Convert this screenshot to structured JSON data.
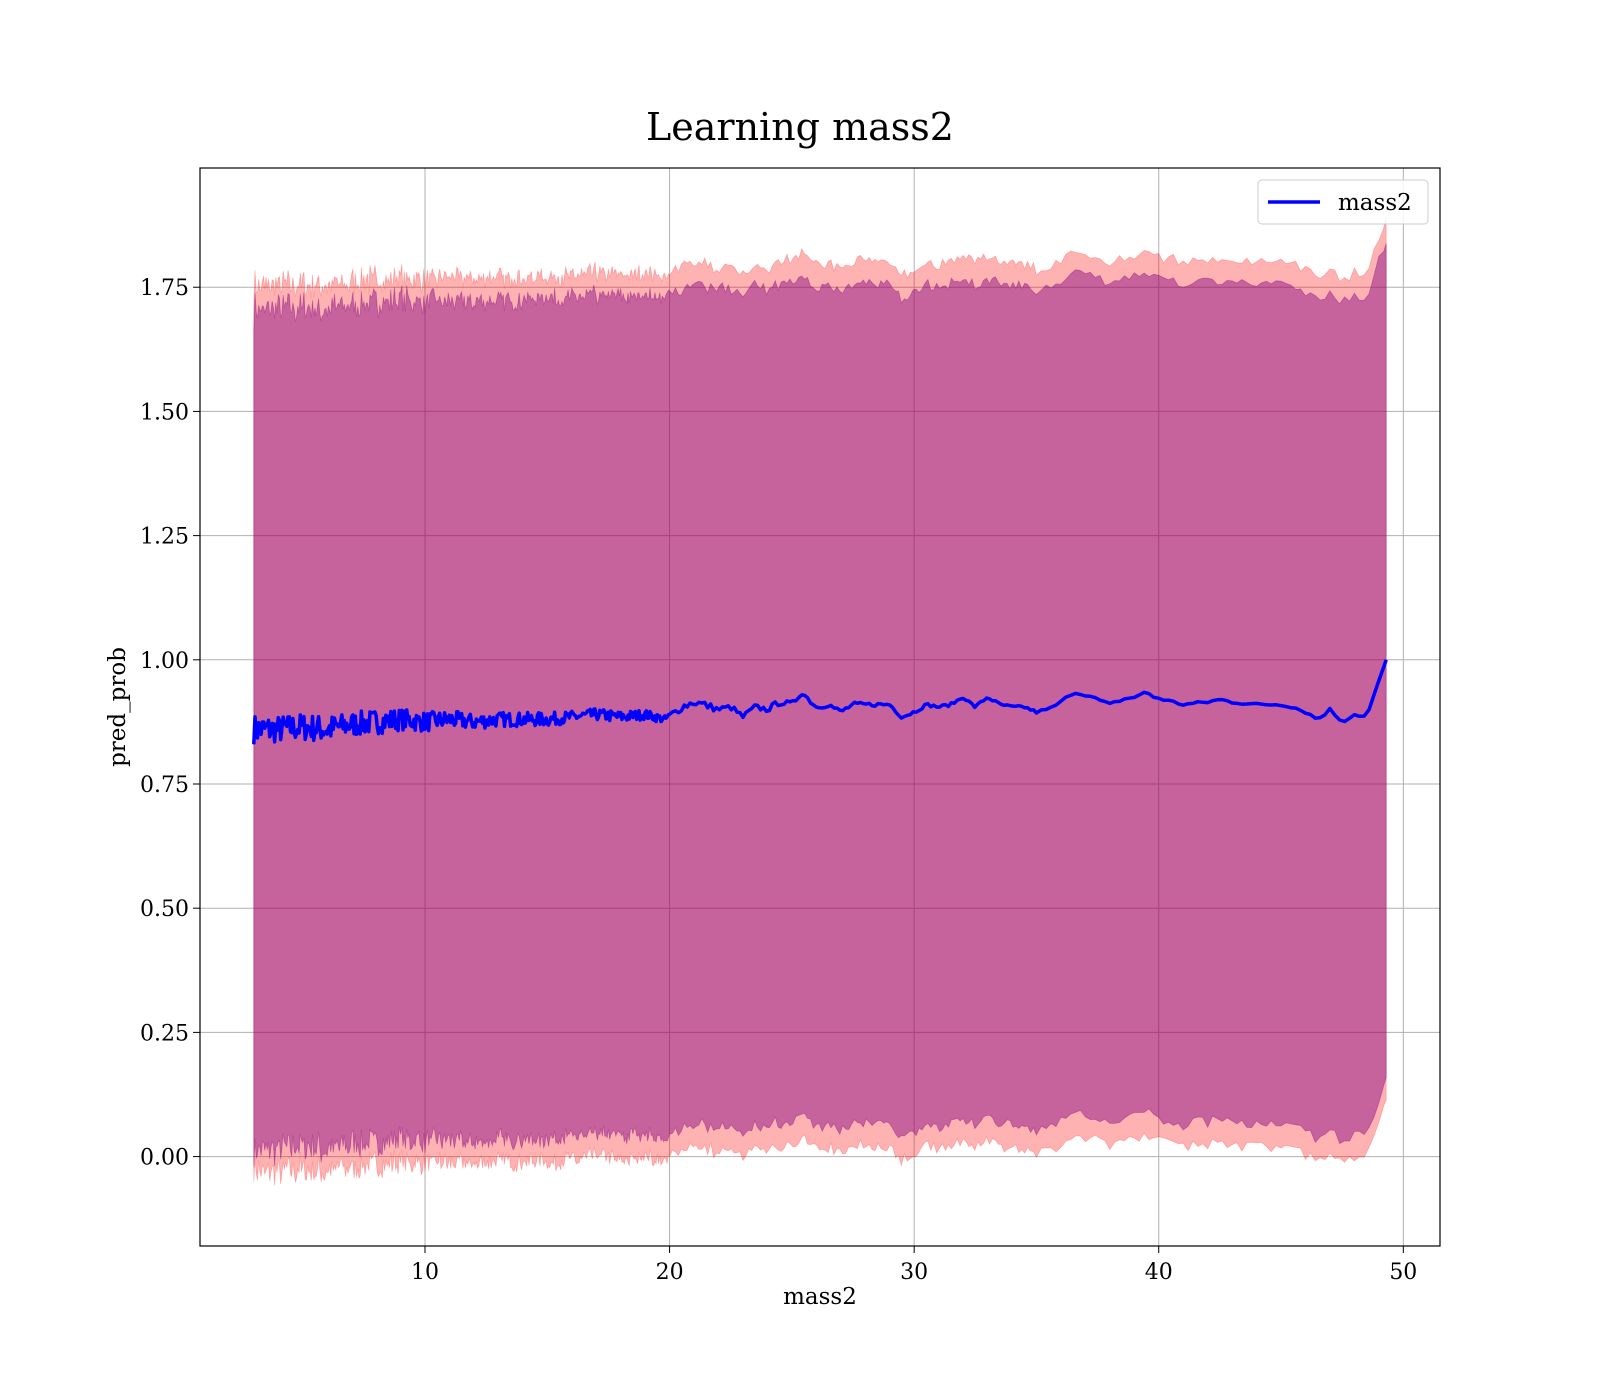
{
  "chart_data": {
    "type": "line",
    "title": "Learning mass2",
    "xlabel": "mass2",
    "ylabel": "pred_prob",
    "xlim": [
      0.8,
      51.5
    ],
    "ylim": [
      -0.18,
      1.99
    ],
    "xticks": [
      10,
      20,
      30,
      40,
      50
    ],
    "xtick_labels": [
      "10",
      "20",
      "30",
      "40",
      "50"
    ],
    "yticks": [
      0.0,
      0.25,
      0.5,
      0.75,
      1.0,
      1.25,
      1.5,
      1.75
    ],
    "ytick_labels": [
      "0.00",
      "0.25",
      "0.50",
      "0.75",
      "1.00",
      "1.25",
      "1.50",
      "1.75"
    ],
    "grid": true,
    "legend_position": "top-right",
    "colors": {
      "line": "#0000ff",
      "outer_band": "#ff0000",
      "inner_band": "#800080"
    },
    "series": [
      {
        "name": "mass2",
        "x": [
          3.0,
          4.0,
          5.0,
          6.0,
          7.0,
          8.0,
          9.0,
          10.0,
          11.0,
          12.0,
          13.0,
          14.0,
          15.0,
          16.0,
          17.0,
          18.0,
          19.0,
          19.8,
          20.5,
          21.0,
          21.4,
          22.0,
          22.5,
          23.0,
          23.5,
          24.0,
          24.5,
          25.0,
          25.4,
          26.0,
          26.5,
          27.0,
          27.5,
          28.0,
          29.0,
          29.5,
          30.0,
          30.5,
          31.0,
          31.5,
          32.0,
          32.5,
          33.0,
          33.5,
          34.0,
          34.5,
          35.0,
          35.5,
          36.0,
          36.5,
          37.0,
          37.5,
          38.0,
          38.5,
          39.0,
          39.5,
          39.8,
          40.2,
          41.0,
          42.0,
          42.5,
          43.0,
          44.0,
          45.0,
          45.5,
          46.0,
          46.5,
          47.0,
          47.5,
          48.0,
          48.5,
          49.3
        ],
        "y": [
          0.86,
          0.86,
          0.865,
          0.86,
          0.87,
          0.875,
          0.88,
          0.875,
          0.88,
          0.875,
          0.88,
          0.88,
          0.88,
          0.885,
          0.89,
          0.885,
          0.89,
          0.88,
          0.905,
          0.915,
          0.91,
          0.9,
          0.905,
          0.885,
          0.905,
          0.9,
          0.915,
          0.91,
          0.935,
          0.905,
          0.91,
          0.895,
          0.91,
          0.91,
          0.91,
          0.885,
          0.895,
          0.91,
          0.905,
          0.91,
          0.925,
          0.905,
          0.925,
          0.91,
          0.905,
          0.905,
          0.895,
          0.9,
          0.915,
          0.935,
          0.93,
          0.92,
          0.91,
          0.92,
          0.925,
          0.935,
          0.925,
          0.92,
          0.91,
          0.915,
          0.92,
          0.915,
          0.91,
          0.91,
          0.905,
          0.895,
          0.88,
          0.9,
          0.875,
          0.89,
          0.885,
          1.0
        ],
        "jitter_amplitude": [
          0.03,
          0.028,
          0.028,
          0.028,
          0.025,
          0.025,
          0.022,
          0.02,
          0.018,
          0.016,
          0.015,
          0.014,
          0.014,
          0.012,
          0.012,
          0.012,
          0.01,
          0.008,
          0.008,
          0.008,
          0.008,
          0.006,
          0.006,
          0.006,
          0.006,
          0.006,
          0.006,
          0.006,
          0.006,
          0.005,
          0.005,
          0.005,
          0.005,
          0.004,
          0.004,
          0.004,
          0.004,
          0.003,
          0.003,
          0.003,
          0.003,
          0.003,
          0.003,
          0.003,
          0.003,
          0.003,
          0.003,
          0.003,
          0.003,
          0.003,
          0.003,
          0.003,
          0.003,
          0.003,
          0.003,
          0.003,
          0.003,
          0.003,
          0.003,
          0.003,
          0.003,
          0.003,
          0.003,
          0.003,
          0.003,
          0.003,
          0.003,
          0.003,
          0.003,
          0.003,
          0.003,
          0.003
        ]
      }
    ],
    "bands": [
      {
        "role": "outer",
        "offset_upper": 0.89,
        "offset_lower": 0.89
      },
      {
        "role": "inner",
        "offset_upper": 0.845,
        "offset_lower": 0.845
      }
    ]
  }
}
